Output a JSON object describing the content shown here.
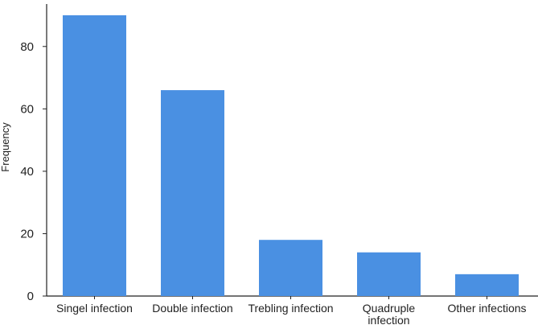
{
  "chart_data": {
    "type": "bar",
    "title": "",
    "xlabel": "",
    "ylabel": "Frequency",
    "categories": [
      [
        "Singel infection"
      ],
      [
        "Double infection"
      ],
      [
        "Trebling infection"
      ],
      [
        "Quadruple",
        "infection"
      ],
      [
        "Other infections"
      ]
    ],
    "values": [
      90,
      66,
      18,
      14,
      7
    ],
    "ylim": [
      0,
      90
    ],
    "yticks": [
      "0",
      "20",
      "40",
      "60",
      "80"
    ],
    "grid": false,
    "legend": "none",
    "bar_color": "#4a90e2",
    "axis_color": "#222222"
  }
}
